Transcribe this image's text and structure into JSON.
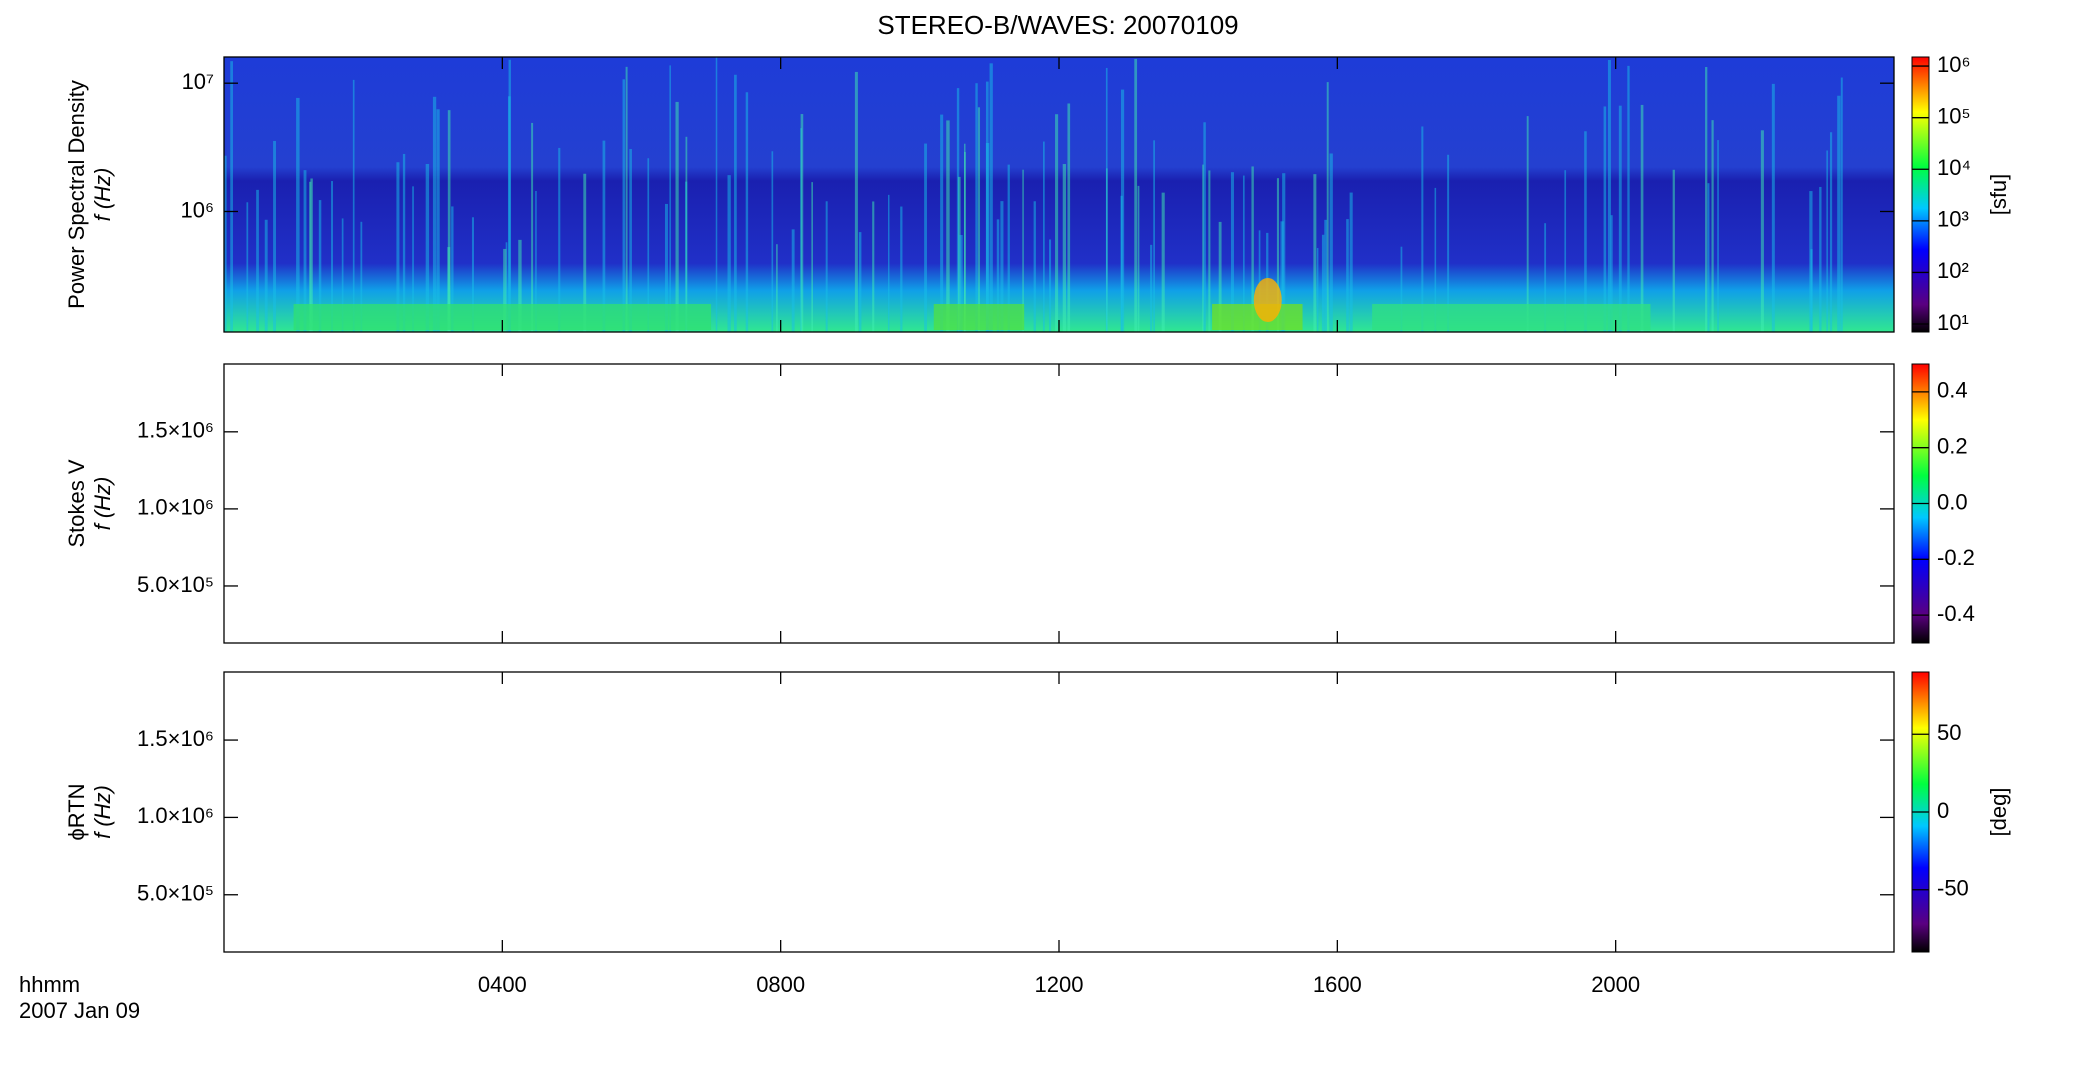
{
  "chart_data": [
    {
      "type": "heatmap",
      "title": "STEREO-B/WAVES: 20070109",
      "ylabel": [
        "Power Spectral Density",
        "f (Hz)"
      ],
      "ylog": true,
      "ylim": [
        115000,
        16000000
      ],
      "yticks": [
        {
          "value": 1000000,
          "label": "10⁶"
        },
        {
          "value": 10000000,
          "label": "10⁷"
        }
      ],
      "colormap": "rainbow",
      "colorbar": {
        "label": "[sfu]",
        "log": true,
        "lim": [
          7,
          1500000
        ],
        "ticks": [
          {
            "value": 10,
            "label": "10¹"
          },
          {
            "value": 100,
            "label": "10²"
          },
          {
            "value": 1000,
            "label": "10³"
          },
          {
            "value": 10000,
            "label": "10⁴"
          },
          {
            "value": 100000,
            "label": "10⁵"
          },
          {
            "value": 1000000,
            "label": "10⁶"
          }
        ]
      }
    },
    {
      "type": "heatmap",
      "ylabel": [
        "Stokes V",
        "f (Hz)"
      ],
      "ylog": false,
      "ylim": [
        130000,
        1940000
      ],
      "yticks": [
        {
          "value": 500000,
          "label": "5.0×10⁵"
        },
        {
          "value": 1000000,
          "label": "1.0×10⁶"
        },
        {
          "value": 1500000,
          "label": "1.5×10⁶"
        }
      ],
      "colormap": "rainbow",
      "colorbar": {
        "log": false,
        "lim": [
          -0.5,
          0.5
        ],
        "ticks": [
          -0.4,
          -0.2,
          {
            "value": 0,
            "label": "0.0"
          },
          0.2,
          0.4
        ]
      }
    },
    {
      "type": "heatmap",
      "ylabel": [
        "ϕRTN",
        "f (Hz)"
      ],
      "ylog": false,
      "ylim": [
        130000,
        1940000
      ],
      "yticks": [
        {
          "value": 500000,
          "label": "5.0×10⁵"
        },
        {
          "value": 1000000,
          "label": "1.0×10⁶"
        },
        {
          "value": 1500000,
          "label": "1.5×10⁶"
        }
      ],
      "colormap": "rainbow",
      "colorbar": {
        "label": "[deg]",
        "log": false,
        "lim": [
          -90,
          90
        ],
        "ticks": [
          -50,
          0,
          50
        ]
      },
      "xlim": [
        0,
        24
      ],
      "xticks": [
        {
          "value": 4,
          "label": "0400"
        },
        {
          "value": 8,
          "label": "0800"
        },
        {
          "value": 12,
          "label": "1200"
        },
        {
          "value": 16,
          "label": "1600"
        },
        {
          "value": 20,
          "label": "2000"
        }
      ],
      "xlabel": [
        "hhmm",
        "2007 Jan 09"
      ]
    }
  ]
}
